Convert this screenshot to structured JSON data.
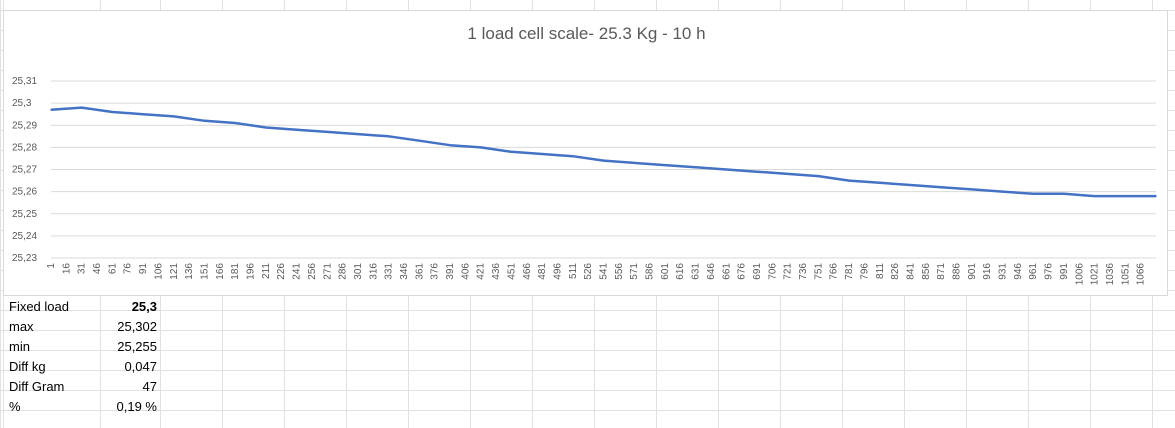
{
  "summary_table": [
    {
      "label": "Fixed load",
      "value": "25,3",
      "bold": true
    },
    {
      "label": "max",
      "value": "25,302"
    },
    {
      "label": "min",
      "value": "25,255"
    },
    {
      "label": "Diff kg",
      "value": "0,047"
    },
    {
      "label": "Diff Gram",
      "value": "47"
    },
    {
      "label": "%",
      "value": "0,19 %"
    }
  ],
  "colors": {
    "series": "#4472c4",
    "gridline": "#d9d9d9",
    "sheet_gridline": "#e1e1e1",
    "axis_text": "#595959"
  },
  "chart_data": {
    "type": "line",
    "title": "1 load cell scale- 25.3 Kg - 10 h",
    "xlabel": "",
    "ylabel": "",
    "ylim": [
      25.23,
      25.31
    ],
    "yticks": [
      25.23,
      25.24,
      25.25,
      25.26,
      25.27,
      25.28,
      25.29,
      25.3,
      25.31
    ],
    "ytick_labels": [
      "25,23",
      "25,24",
      "25,25",
      "25,26",
      "25,27",
      "25,28",
      "25,29",
      "25,3",
      "25,31"
    ],
    "grid": true,
    "legend": "none",
    "x_range": [
      1,
      1081
    ],
    "x_tick_labels": [
      "1",
      "16",
      "31",
      "46",
      "61",
      "76",
      "91",
      "106",
      "121",
      "136",
      "151",
      "166",
      "181",
      "196",
      "211",
      "226",
      "241",
      "256",
      "271",
      "286",
      "301",
      "316",
      "331",
      "346",
      "361",
      "376",
      "391",
      "406",
      "421",
      "436",
      "451",
      "466",
      "481",
      "496",
      "511",
      "526",
      "541",
      "556",
      "571",
      "586",
      "601",
      "616",
      "631",
      "646",
      "661",
      "676",
      "691",
      "706",
      "721",
      "736",
      "751",
      "766",
      "781",
      "796",
      "811",
      "826",
      "841",
      "856",
      "871",
      "886",
      "901",
      "916",
      "931",
      "946",
      "961",
      "976",
      "991",
      "1006",
      "1021",
      "1036",
      "1051",
      "1066"
    ],
    "series": [
      {
        "x": [
          1,
          31,
          61,
          91,
          121,
          151,
          181,
          211,
          241,
          271,
          301,
          331,
          361,
          391,
          421,
          451,
          481,
          511,
          541,
          571,
          601,
          631,
          661,
          691,
          721,
          751,
          781,
          811,
          841,
          871,
          901,
          931,
          961,
          991,
          1021,
          1051,
          1081
        ],
        "values": [
          25.297,
          25.298,
          25.296,
          25.295,
          25.294,
          25.292,
          25.291,
          25.289,
          25.288,
          25.287,
          25.286,
          25.285,
          25.283,
          25.281,
          25.28,
          25.278,
          25.277,
          25.276,
          25.274,
          25.273,
          25.272,
          25.271,
          25.27,
          25.269,
          25.268,
          25.267,
          25.265,
          25.264,
          25.263,
          25.262,
          25.261,
          25.26,
          25.259,
          25.259,
          25.258,
          25.258,
          25.258
        ]
      }
    ]
  }
}
